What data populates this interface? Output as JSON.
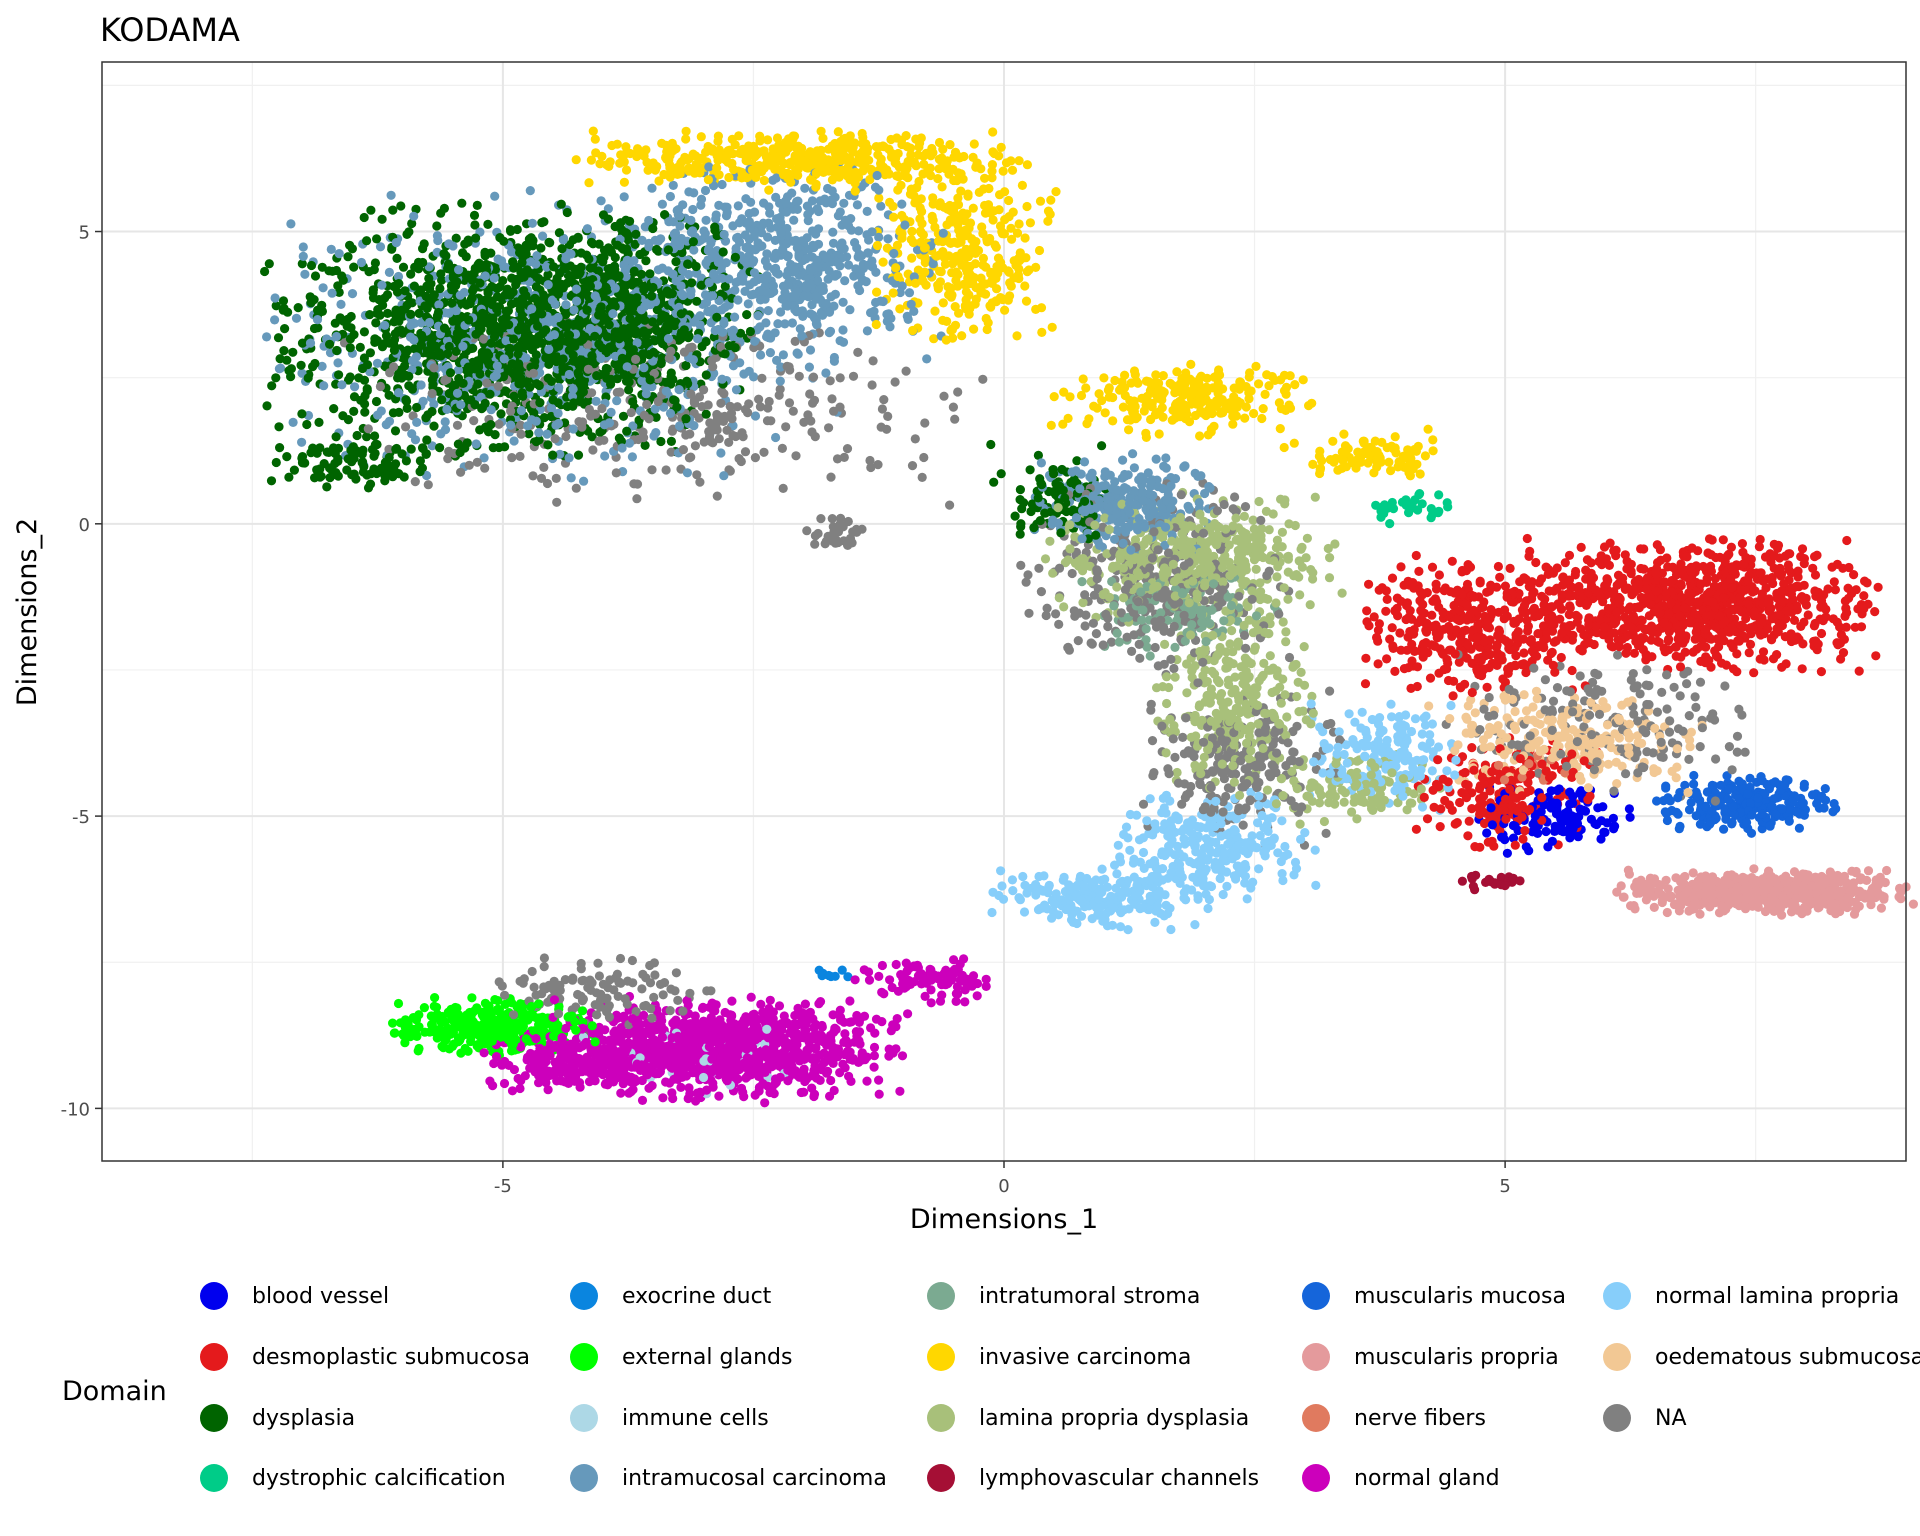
{
  "chart_data": {
    "type": "scatter",
    "title": "KODAMA",
    "xlabel": "Dimensions_1",
    "ylabel": "Dimensions_2",
    "xlim": [
      -9,
      9
    ],
    "ylim": [
      -10.9,
      7.9
    ],
    "xticks": [
      -5,
      0,
      5
    ],
    "xtick_labels": [
      "-5",
      "0",
      "5"
    ],
    "yticks": [
      -10,
      -5,
      0,
      5
    ],
    "ytick_labels": [
      "-10",
      "-5",
      "0",
      "5"
    ],
    "grid": true,
    "legend_title": "Domain",
    "legend_position": "bottom",
    "categories": [
      {
        "name": "blood vessel",
        "color": "#0000EE"
      },
      {
        "name": "desmoplastic submucosa",
        "color": "#E41A1C"
      },
      {
        "name": "dysplasia",
        "color": "#006400"
      },
      {
        "name": "dystrophic calcification",
        "color": "#00CC88"
      },
      {
        "name": "exocrine duct",
        "color": "#0A85DF"
      },
      {
        "name": "external glands",
        "color": "#00FF00"
      },
      {
        "name": "immune cells",
        "color": "#ADD8E6"
      },
      {
        "name": "intramucosal carcinoma",
        "color": "#6699BB"
      },
      {
        "name": "intratumoral stroma",
        "color": "#7BAA91"
      },
      {
        "name": "invasive carcinoma",
        "color": "#FFD700"
      },
      {
        "name": "lamina propria dysplasia",
        "color": "#A8C07A"
      },
      {
        "name": "lymphovascular channels",
        "color": "#A50F35"
      },
      {
        "name": "muscularis mucosa",
        "color": "#1565DA"
      },
      {
        "name": "muscularis propria",
        "color": "#E49A9C"
      },
      {
        "name": "nerve fibers",
        "color": "#E07A5F"
      },
      {
        "name": "normal gland",
        "color": "#CC00BB"
      },
      {
        "name": "normal lamina propria",
        "color": "#87CEFA"
      },
      {
        "name": "oedematous submucosa",
        "color": "#F2C894"
      },
      {
        "name": "NA",
        "color": "#808080"
      }
    ],
    "clusters": [
      {
        "domain": "dysplasia",
        "cx": -5.2,
        "cy": 3.3,
        "rx": 1.9,
        "ry": 1.9,
        "n": 1100
      },
      {
        "domain": "dysplasia",
        "cx": -3.8,
        "cy": 3.4,
        "rx": 1.2,
        "ry": 1.7,
        "n": 500
      },
      {
        "domain": "dysplasia",
        "cx": -6.5,
        "cy": 1.0,
        "rx": 0.8,
        "ry": 0.4,
        "n": 90
      },
      {
        "domain": "dysplasia",
        "cx": 0.5,
        "cy": 0.5,
        "rx": 0.6,
        "ry": 0.8,
        "n": 90
      },
      {
        "domain": "intramucosal carcinoma",
        "cx": -4.5,
        "cy": 3.2,
        "rx": 2.5,
        "ry": 2.2,
        "n": 700
      },
      {
        "domain": "intramucosal carcinoma",
        "cx": -2.2,
        "cy": 4.5,
        "rx": 1.4,
        "ry": 1.5,
        "n": 550
      },
      {
        "domain": "intramucosal carcinoma",
        "cx": 1.2,
        "cy": 0.3,
        "rx": 0.8,
        "ry": 0.8,
        "n": 260
      },
      {
        "domain": "invasive carcinoma",
        "cx": -2.0,
        "cy": 6.2,
        "rx": 2.0,
        "ry": 0.45,
        "n": 450
      },
      {
        "domain": "invasive carcinoma",
        "cx": -0.4,
        "cy": 4.6,
        "rx": 0.8,
        "ry": 1.4,
        "n": 320
      },
      {
        "domain": "invasive carcinoma",
        "cx": 1.8,
        "cy": 2.1,
        "rx": 1.2,
        "ry": 0.6,
        "n": 220
      },
      {
        "domain": "invasive carcinoma",
        "cx": 3.6,
        "cy": 1.2,
        "rx": 0.8,
        "ry": 0.4,
        "n": 90
      },
      {
        "domain": "lamina propria dysplasia",
        "cx": 1.9,
        "cy": -0.6,
        "rx": 1.3,
        "ry": 1.0,
        "n": 420
      },
      {
        "domain": "lamina propria dysplasia",
        "cx": 2.3,
        "cy": -3.0,
        "rx": 0.7,
        "ry": 1.5,
        "n": 260
      },
      {
        "domain": "lamina propria dysplasia",
        "cx": 3.5,
        "cy": -4.5,
        "rx": 0.8,
        "ry": 0.6,
        "n": 120
      },
      {
        "domain": "intratumoral stroma",
        "cx": 1.8,
        "cy": -1.5,
        "rx": 0.9,
        "ry": 0.7,
        "n": 120
      },
      {
        "domain": "desmoplastic submucosa",
        "cx": 6.9,
        "cy": -1.4,
        "rx": 1.6,
        "ry": 1.0,
        "n": 900
      },
      {
        "domain": "desmoplastic submucosa",
        "cx": 4.7,
        "cy": -1.8,
        "rx": 1.0,
        "ry": 1.1,
        "n": 380
      },
      {
        "domain": "desmoplastic submucosa",
        "cx": 5.0,
        "cy": -4.6,
        "rx": 0.8,
        "ry": 0.9,
        "n": 200
      },
      {
        "domain": "muscularis propria",
        "cx": 7.6,
        "cy": -6.3,
        "rx": 1.3,
        "ry": 0.35,
        "n": 650
      },
      {
        "domain": "muscularis mucosa",
        "cx": 7.4,
        "cy": -4.8,
        "rx": 0.8,
        "ry": 0.45,
        "n": 230
      },
      {
        "domain": "blood vessel",
        "cx": 5.5,
        "cy": -5.0,
        "rx": 0.7,
        "ry": 0.6,
        "n": 120
      },
      {
        "domain": "oedematous submucosa",
        "cx": 5.6,
        "cy": -3.7,
        "rx": 1.2,
        "ry": 0.8,
        "n": 240
      },
      {
        "domain": "normal lamina propria",
        "cx": 2.1,
        "cy": -5.5,
        "rx": 0.9,
        "ry": 0.8,
        "n": 250
      },
      {
        "domain": "normal lamina propria",
        "cx": 1.0,
        "cy": -6.4,
        "rx": 1.0,
        "ry": 0.5,
        "n": 220
      },
      {
        "domain": "normal lamina propria",
        "cx": 3.8,
        "cy": -4.0,
        "rx": 0.7,
        "ry": 0.8,
        "n": 170
      },
      {
        "domain": "normal gland",
        "cx": -2.8,
        "cy": -9.0,
        "rx": 1.6,
        "ry": 0.8,
        "n": 950
      },
      {
        "domain": "normal gland",
        "cx": -4.3,
        "cy": -9.2,
        "rx": 0.8,
        "ry": 0.5,
        "n": 200
      },
      {
        "domain": "normal gland",
        "cx": -0.8,
        "cy": -7.8,
        "rx": 0.6,
        "ry": 0.35,
        "n": 90
      },
      {
        "domain": "external glands",
        "cx": -5.1,
        "cy": -8.6,
        "rx": 0.9,
        "ry": 0.45,
        "n": 320
      },
      {
        "domain": "immune cells",
        "cx": -3.0,
        "cy": -9.2,
        "rx": 1.2,
        "ry": 0.6,
        "n": 40
      },
      {
        "domain": "exocrine duct",
        "cx": -1.7,
        "cy": -7.7,
        "rx": 0.2,
        "ry": 0.1,
        "n": 8
      },
      {
        "domain": "dystrophic calcification",
        "cx": 4.0,
        "cy": 0.3,
        "rx": 0.4,
        "ry": 0.3,
        "n": 30
      },
      {
        "domain": "lymphovascular channels",
        "cx": 4.9,
        "cy": -6.1,
        "rx": 0.3,
        "ry": 0.15,
        "n": 20
      },
      {
        "domain": "nerve fibers",
        "cx": 5.3,
        "cy": -4.2,
        "rx": 0.4,
        "ry": 0.3,
        "n": 15
      },
      {
        "domain": "NA",
        "cx": -3.4,
        "cy": 2.0,
        "rx": 2.8,
        "ry": 1.5,
        "n": 320
      },
      {
        "domain": "NA",
        "cx": 1.5,
        "cy": -1.0,
        "rx": 1.2,
        "ry": 1.5,
        "n": 280
      },
      {
        "domain": "NA",
        "cx": 2.4,
        "cy": -4.2,
        "rx": 0.9,
        "ry": 1.2,
        "n": 200
      },
      {
        "domain": "NA",
        "cx": 6.0,
        "cy": -3.5,
        "rx": 1.4,
        "ry": 1.1,
        "n": 170
      },
      {
        "domain": "NA",
        "cx": -4.0,
        "cy": -8.0,
        "rx": 1.0,
        "ry": 0.5,
        "n": 110
      },
      {
        "domain": "NA",
        "cx": -1.7,
        "cy": -0.2,
        "rx": 0.3,
        "ry": 0.3,
        "n": 30
      }
    ]
  }
}
